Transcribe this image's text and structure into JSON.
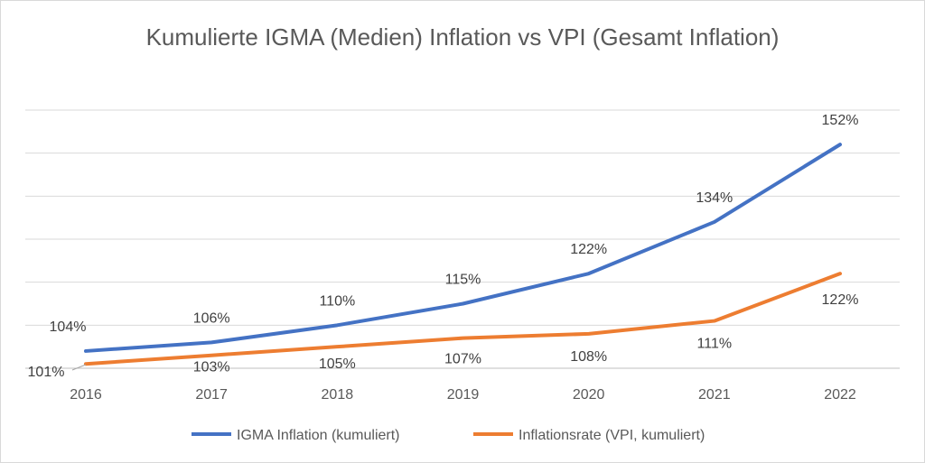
{
  "chart_data": {
    "type": "line",
    "title": "Kumulierte IGMA (Medien) Inflation vs VPI (Gesamt Inflation)",
    "xlabel": "",
    "ylabel": "",
    "categories": [
      "2016",
      "2017",
      "2018",
      "2019",
      "2020",
      "2021",
      "2022"
    ],
    "ylim": [
      100,
      160
    ],
    "grid": true,
    "legend_position": "bottom",
    "series": [
      {
        "name": "IGMA Inflation (kumuliert)",
        "color": "#4472c4",
        "values": [
          104,
          106,
          110,
          115,
          122,
          134,
          152
        ],
        "labels": [
          "104%",
          "106%",
          "110%",
          "115%",
          "122%",
          "134%",
          "152%"
        ]
      },
      {
        "name": "Inflationsrate (VPI, kumuliert)",
        "color": "#ed7d31",
        "values": [
          101,
          103,
          105,
          107,
          108,
          111,
          122
        ],
        "labels": [
          "101%",
          "103%",
          "105%",
          "107%",
          "108%",
          "111%",
          "122%"
        ]
      }
    ]
  }
}
